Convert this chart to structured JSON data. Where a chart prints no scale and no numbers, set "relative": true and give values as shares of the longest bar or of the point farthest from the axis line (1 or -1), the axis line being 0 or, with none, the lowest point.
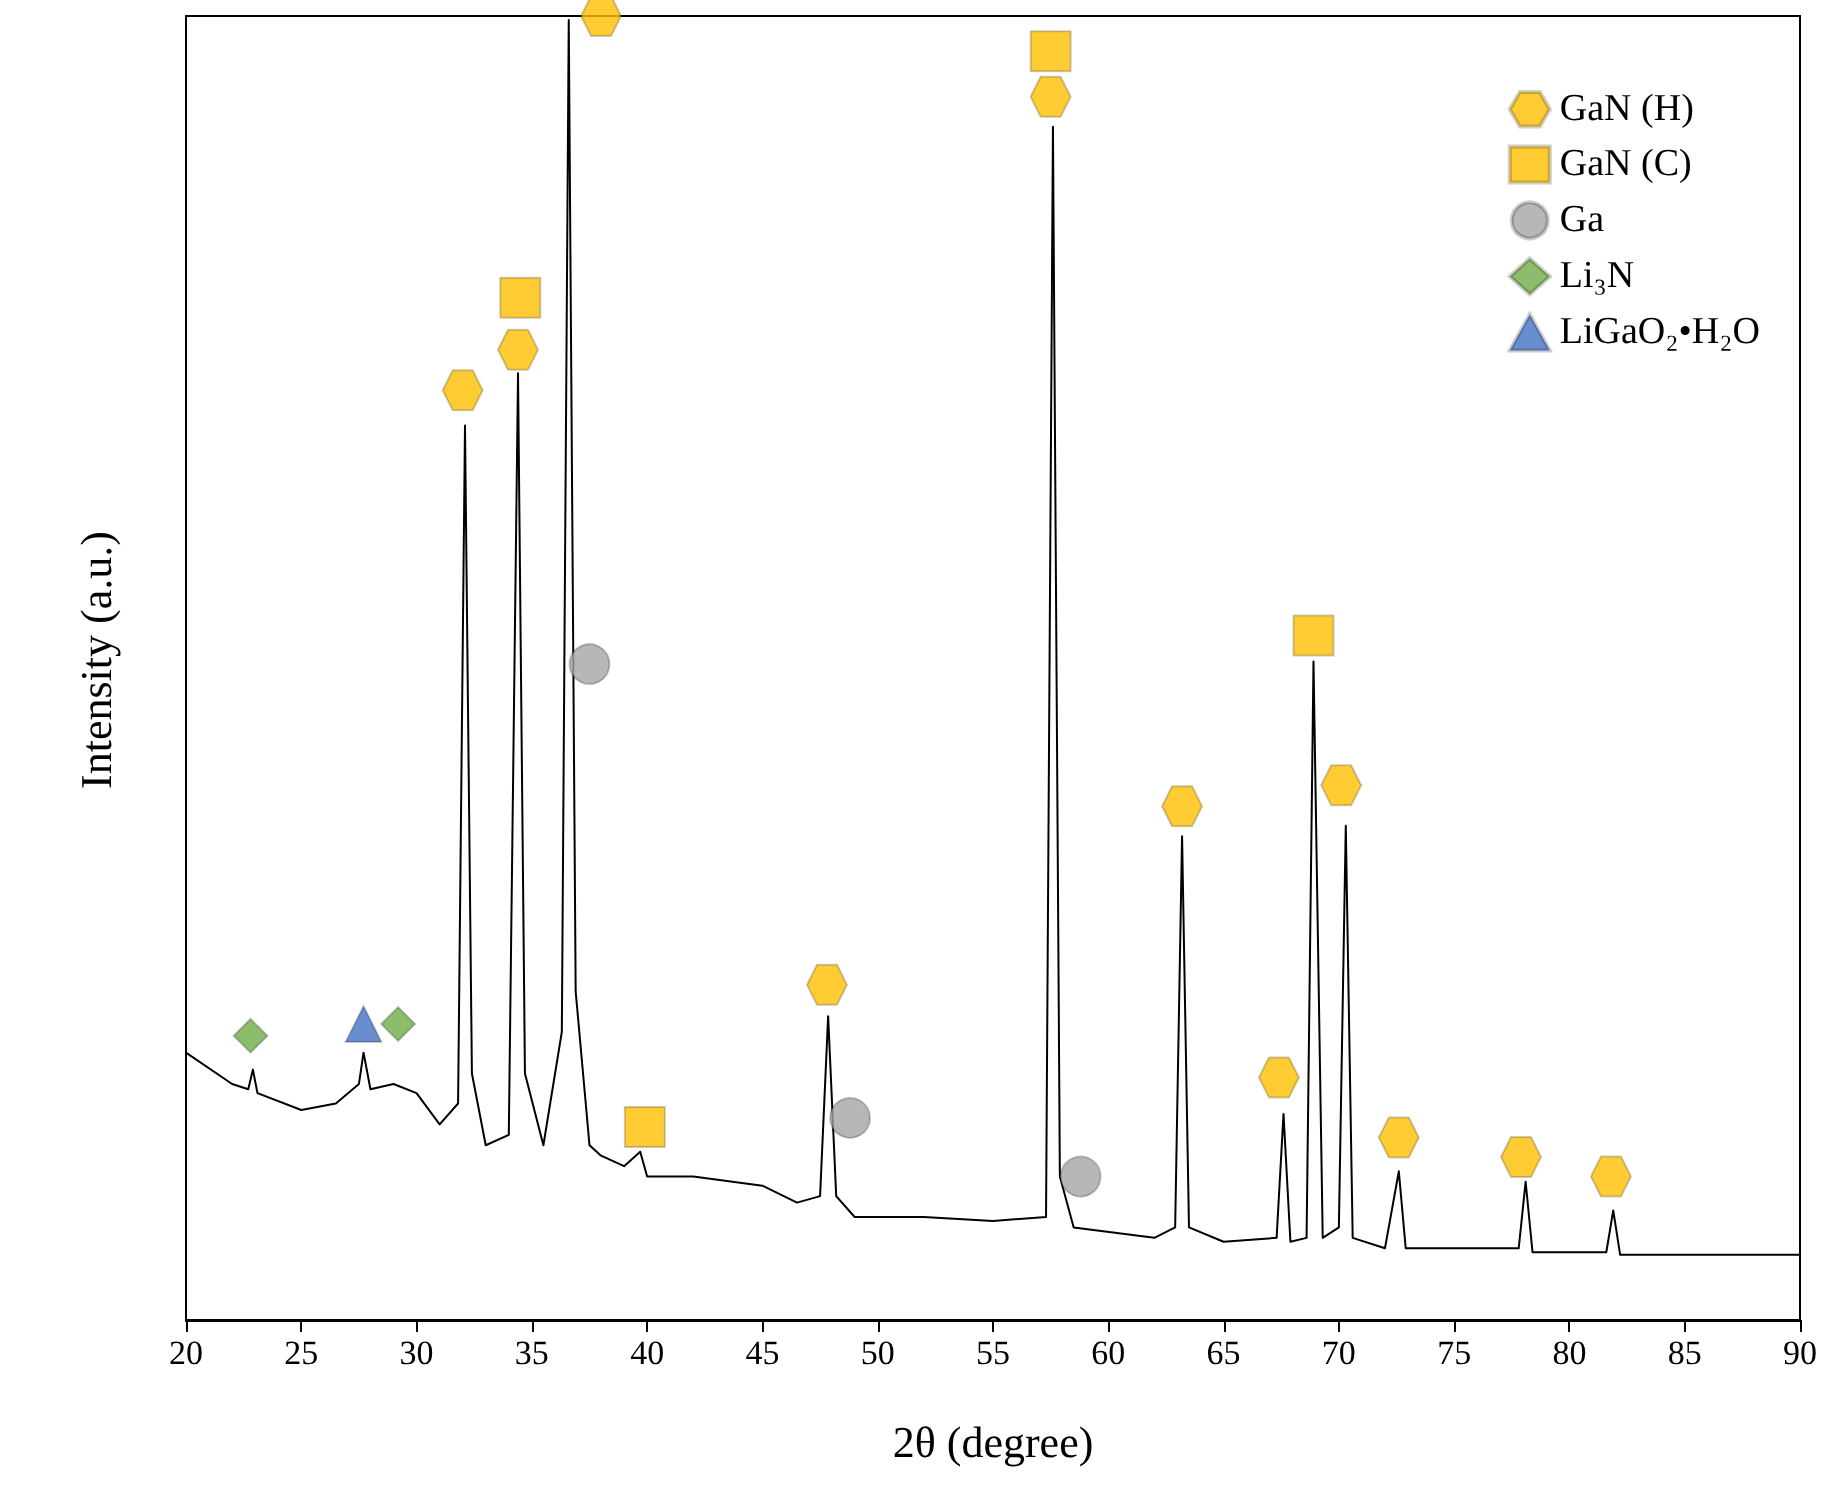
{
  "chart_data": {
    "type": "line",
    "xlabel": "2θ (degree)",
    "ylabel": "Intensity (a.u.)",
    "relative": true,
    "xlim": [
      20,
      90
    ],
    "xticks": [
      20,
      25,
      30,
      35,
      40,
      45,
      50,
      55,
      60,
      65,
      70,
      75,
      80,
      85,
      90
    ],
    "grid": false,
    "legend": "top right",
    "line_style": "solid",
    "series": [
      {
        "color": "#000000",
        "marker": "none",
        "x": [
          20,
          22,
          22.7,
          22.9,
          23.1,
          25,
          26.5,
          27.5,
          27.7,
          28,
          29,
          30,
          31,
          31.8,
          32.1,
          32.4,
          33,
          34,
          34.4,
          34.7,
          35.5,
          36.3,
          36.6,
          36.9,
          37.5,
          38,
          39,
          39.7,
          40,
          42,
          45,
          46.5,
          47.5,
          47.85,
          48.2,
          49,
          52,
          55,
          57.3,
          57.6,
          57.9,
          58.5,
          62,
          62.9,
          63.2,
          63.5,
          65,
          67.3,
          67.6,
          67.9,
          68.6,
          68.9,
          69.3,
          70,
          70.3,
          70.6,
          72,
          72.6,
          72.9,
          77.8,
          78.1,
          78.4,
          81.6,
          81.9,
          82.2,
          90
        ],
        "values": [
          0.205,
          0.181,
          0.177,
          0.192,
          0.174,
          0.161,
          0.166,
          0.181,
          0.205,
          0.177,
          0.181,
          0.174,
          0.15,
          0.166,
          0.686,
          0.189,
          0.134,
          0.142,
          0.726,
          0.189,
          0.134,
          0.221,
          0.997,
          0.252,
          0.134,
          0.126,
          0.118,
          0.129,
          0.11,
          0.11,
          0.103,
          0.09,
          0.095,
          0.233,
          0.095,
          0.079,
          0.079,
          0.076,
          0.079,
          0.915,
          0.11,
          0.071,
          0.063,
          0.071,
          0.371,
          0.071,
          0.06,
          0.063,
          0.158,
          0.06,
          0.063,
          0.505,
          0.063,
          0.071,
          0.379,
          0.063,
          0.055,
          0.114,
          0.055,
          0.055,
          0.106,
          0.052,
          0.052,
          0.084,
          0.05,
          0.05
        ]
      },
      {
        "type": "scatter",
        "name": "GaN (H)",
        "color": "#ffc000",
        "x": [
          32.0,
          34.4,
          38.0,
          57.5,
          47.8,
          63.2,
          67.4,
          70.1,
          72.6,
          77.9,
          81.8
        ],
        "values": [
          0.713,
          0.744,
          1.0,
          0.938,
          0.257,
          0.394,
          0.186,
          0.41,
          0.14,
          0.125,
          0.11
        ]
      },
      {
        "type": "scatter",
        "name": "GaN (C)",
        "color": "#ffc000",
        "marker": "square",
        "x": [
          34.5,
          39.9,
          57.5,
          68.9
        ],
        "values": [
          0.784,
          0.148,
          0.973,
          0.525
        ]
      },
      {
        "type": "scatter",
        "name": "Ga",
        "color": "#a5a5a5",
        "marker": "circle",
        "x": [
          37.5,
          48.8,
          58.8
        ],
        "values": [
          0.503,
          0.155,
          0.11
        ]
      },
      {
        "type": "scatter",
        "name": "Li₃N",
        "color": "#70ad47",
        "marker": "diamond",
        "x": [
          22.8,
          29.2
        ],
        "values": [
          0.218,
          0.227
        ]
      },
      {
        "type": "scatter",
        "name": "LiGaO₂•H₂O",
        "color": "#4472c4",
        "marker": "triangle",
        "x": [
          27.7
        ],
        "values": [
          0.227
        ]
      }
    ]
  }
}
